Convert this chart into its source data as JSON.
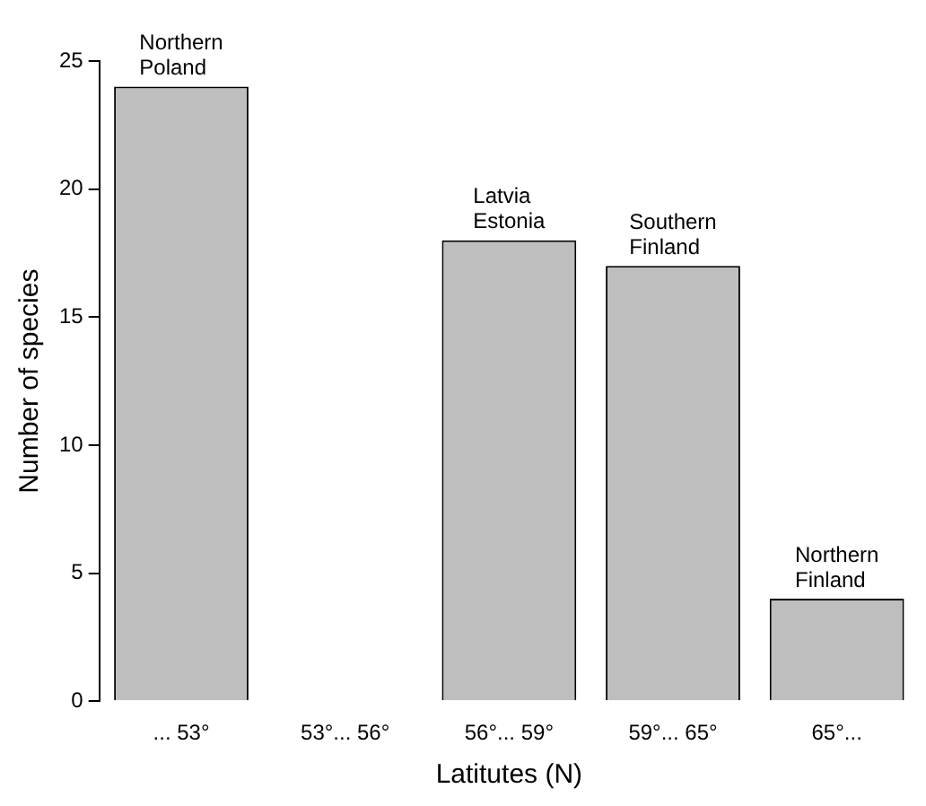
{
  "chart_data": {
    "type": "bar",
    "xlabel": "Latitutes (N)",
    "ylabel": "Number of species",
    "categories": [
      "... 53°",
      "53°... 56°",
      "56°... 59°",
      "59°... 65°",
      "65°..."
    ],
    "values": [
      24,
      0,
      18,
      17,
      4
    ],
    "color": "#bebebe",
    "ylim": [
      0,
      25
    ],
    "yticks": [
      0,
      5,
      10,
      15,
      20,
      25
    ],
    "grid": false,
    "annotations": [
      {
        "text": "Northern\nPoland",
        "x": "... 53°",
        "y": 24
      },
      {
        "text": "Latvia\nEstonia",
        "x": "56°... 59°",
        "y": 18
      },
      {
        "text": "Southern\nFinland",
        "x": "59°... 65°",
        "y": 17
      },
      {
        "text": "Northern\nFinland",
        "x": "65°...",
        "y": 4
      }
    ]
  }
}
